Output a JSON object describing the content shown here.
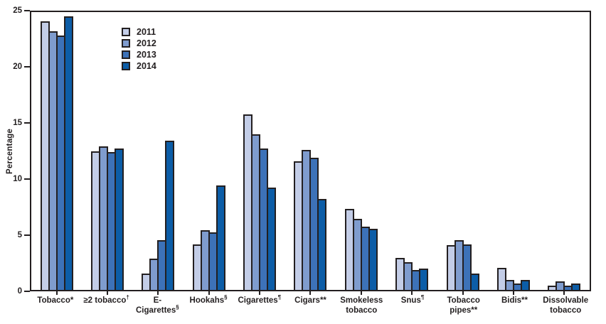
{
  "chart_data": {
    "type": "bar",
    "title": "",
    "xlabel": "",
    "ylabel": "Percentage",
    "ylim": [
      0,
      25
    ],
    "yticks": [
      0,
      5,
      10,
      15,
      20,
      25
    ],
    "grid": false,
    "legend_position": "top-left-inside",
    "plot_border_color": "#231f20",
    "bar_outline_color": "#231f20",
    "categories": [
      {
        "label": "Tobacco*",
        "sup": ""
      },
      {
        "label": "≥2 tobacco",
        "sup": "†"
      },
      {
        "label": "E-Cigarettes",
        "sup": "§"
      },
      {
        "label": "Hookahs",
        "sup": "§"
      },
      {
        "label": "Cigarettes",
        "sup": "¶"
      },
      {
        "label": "Cigars**",
        "sup": ""
      },
      {
        "label": "Smokeless tobacco",
        "sup": ""
      },
      {
        "label": "Snus",
        "sup": "¶"
      },
      {
        "label": "Tobacco pipes**",
        "sup": ""
      },
      {
        "label": "Bidis**",
        "sup": ""
      },
      {
        "label": "Dissolvable tobacco",
        "sup": ""
      }
    ],
    "series": [
      {
        "name": "2011",
        "color": "#c3cde7",
        "values": [
          24.2,
          12.5,
          1.5,
          4.1,
          15.8,
          11.6,
          7.3,
          2.9,
          4.0,
          2.0,
          0.4
        ]
      },
      {
        "name": "2012",
        "color": "#7f9cce",
        "values": [
          23.3,
          12.9,
          2.8,
          5.4,
          14.0,
          12.6,
          6.4,
          2.5,
          4.5,
          0.9,
          0.8
        ]
      },
      {
        "name": "2013",
        "color": "#3d72b8",
        "values": [
          22.9,
          12.4,
          4.5,
          5.2,
          12.7,
          11.9,
          5.7,
          1.8,
          4.1,
          0.6,
          0.4
        ]
      },
      {
        "name": "2014",
        "color": "#0c5da7",
        "values": [
          24.6,
          12.7,
          13.4,
          9.4,
          9.2,
          8.2,
          5.5,
          1.9,
          1.5,
          0.9,
          0.6
        ]
      }
    ]
  }
}
